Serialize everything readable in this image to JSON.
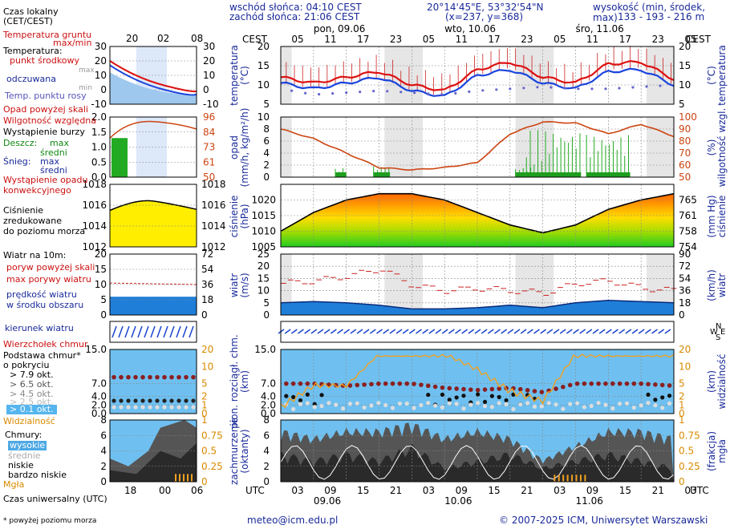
{
  "header": {
    "sunrise": "wschód słońca: 04:10 CEST",
    "sunset": "zachód słońca: 21:06 CEST",
    "coords": "20°14'45\"E, 53°32'54\"N",
    "grid": "(x=237, y=368)",
    "height_label": "wysokość (min, środek, max)",
    "height_values": "133 - 193 - 216 m"
  },
  "time_axis": {
    "top_tz": "CEST",
    "bottom_tz": "UTC",
    "top_hours": [
      "05",
      "11",
      "17",
      "23",
      "05",
      "11",
      "17",
      "23",
      "05",
      "11",
      "17",
      "23",
      "05"
    ],
    "bottom_hours": [
      "03",
      "09",
      "15",
      "21",
      "03",
      "09",
      "15",
      "21",
      "03",
      "09",
      "15",
      "21",
      "03"
    ],
    "top_days": [
      "pon, 09.06",
      "wto, 10.06",
      "śro, 11.06"
    ],
    "bottom_days": [
      "09.06",
      "10.06",
      "11.06"
    ]
  },
  "legend": {
    "local_time": "Czas lokalny",
    "local_time_tz": "(CET/CEST)",
    "local_ticks": [
      "20",
      "02",
      "08"
    ],
    "ground_temp": "Temperatura gruntu",
    "ground_temp_sub": "max/min",
    "temperature": "Temperatura:",
    "center_point": "punkt środkowy",
    "max": "max",
    "min": "min",
    "sheltered": "odczuwana",
    "dew_point": "Temp. punktu rosy",
    "precip_above": "Opad powyżej skali",
    "humidity": "Wilgotność względna",
    "storm": "Wystąpienie burzy",
    "rain": "Deszcz:",
    "rain_max": "max",
    "rain_mid": "średni",
    "snow": "Śnieg:",
    "snow_max": "max",
    "snow_mid": "średni",
    "convective": "Wystąpienie opadu",
    "convective2": "konwekcyjnego",
    "pressure1": "Ciśnienie",
    "pressure2": "zredukowane",
    "pressure3": "do poziomu morza",
    "wind_title": "Wiatr na 10m:",
    "gust_above": "poryw powyżej skali",
    "gust_max": "max porywy wiatru",
    "wind_mean1": "prędkość wiatru",
    "wind_mean2": "w środku obszaru",
    "wind_dir": "kierunek wiatru",
    "cloud_top": "Wierzchołek chmur",
    "cloud_base1": "Podstawa chmur*",
    "cloud_base2": "o pokryciu",
    "okt79": "> 7.9 okt.",
    "okt65": "> 6.5 okt.",
    "okt45": "> 4.5 okt.",
    "okt25": "> 2.5 okt.",
    "okt01": "> 0.1 okt.",
    "visibility": "Widzialność",
    "clouds": "Chmury:",
    "high": "wysokie",
    "mid": "średnie",
    "low": "niskie",
    "very_low": "bardzo niskie",
    "fog": "Mgła",
    "utc_time": "Czas uniwersalny (UTC)",
    "utc_ticks": [
      "18",
      "00",
      "06"
    ],
    "footnote": "* powyżej poziomu morza"
  },
  "panel_labels": {
    "temp_left": [
      "temperatura",
      "(°C)"
    ],
    "temp_right": [
      "temperatura",
      "(°C)"
    ],
    "precip_left": [
      "opad",
      "(mm/h, kg/m²/h)"
    ],
    "precip_right": [
      "wilgotność wzgl.",
      "(%)"
    ],
    "press_left": [
      "ciśnienie",
      "(hPa)"
    ],
    "press_right": [
      "ciśnienie",
      "(mm Hg)"
    ],
    "wind_left": [
      "wiatr",
      "(m/s)"
    ],
    "wind_right": [
      "wiatr",
      "(km/h)"
    ],
    "cloud_left": [
      "pion. rozciągł. chm.",
      "(km)"
    ],
    "cloud_right": [
      "widzialność",
      "(km)"
    ],
    "cover_left": [
      "zachmurzenie",
      "(oktanty)"
    ],
    "cover_right": [
      "mgła",
      "(frakcja)"
    ]
  },
  "footer": {
    "email": "meteo@icm.edu.pl",
    "copyright": "© 2007-2025 ICM, Uniwersytet Warszawski"
  },
  "colors": {
    "temp": "#dd1111",
    "feel": "#1a44dd",
    "dew": "#6666cc",
    "humidity": "#cc4411",
    "rain": "#22aa22",
    "pressure_line": "#000000",
    "wind_gust": "#cc2222",
    "sky": "#6fc0f0",
    "cloud_dark": "#333333",
    "visibility": "#f0a020"
  },
  "chart_data": [
    {
      "type": "line",
      "title": "temperatura",
      "ylabel": "temperatura (°C)",
      "ylim": [
        5,
        20
      ],
      "yticks": [
        5,
        10,
        15,
        20
      ],
      "x_hours_utc": [
        0,
        6,
        12,
        18,
        24,
        30,
        36,
        42,
        48,
        54,
        60,
        66,
        72
      ],
      "series": [
        {
          "name": "temperatura",
          "values": [
            12,
            10.5,
            12,
            13.5,
            10,
            8.5,
            14,
            16,
            12,
            10.5,
            15.5,
            16,
            11.5
          ]
        },
        {
          "name": "odczuwana",
          "values": [
            10.5,
            9,
            10.5,
            12,
            8.5,
            7,
            12.5,
            14,
            10.5,
            9,
            13.5,
            14,
            10
          ]
        },
        {
          "name": "punkt rosy",
          "values": [
            9,
            7.5,
            8,
            8.5,
            8,
            7.5,
            8.5,
            9,
            9.5,
            9,
            9,
            9.5,
            10
          ]
        }
      ]
    },
    {
      "type": "line",
      "title": "opad i wilgotność",
      "ylabel": "opad (mm/h, kg/m²/h)",
      "ylim": [
        0,
        10
      ],
      "y2lim": [
        50,
        100
      ],
      "x_hours_utc": [
        0,
        6,
        12,
        18,
        24,
        30,
        36,
        42,
        48,
        54,
        60,
        66,
        72
      ],
      "series": [
        {
          "name": "wilgotność względna",
          "values": [
            90,
            82,
            70,
            58,
            56,
            58,
            62,
            86,
            96,
            95,
            86,
            94,
            84
          ]
        },
        {
          "name": "opad max",
          "values": [
            0,
            0,
            0,
            1.5,
            0,
            0,
            0,
            6,
            5.5,
            0,
            5,
            0,
            0
          ]
        }
      ]
    },
    {
      "type": "area",
      "title": "ciśnienie",
      "ylabel": "ciśnienie (hPa)",
      "ylim": [
        1005,
        1025
      ],
      "yticks": [
        1005,
        1010,
        1015,
        1020
      ],
      "y2ticks": [
        754,
        758,
        761,
        765
      ],
      "x_hours_utc": [
        0,
        6,
        12,
        18,
        24,
        30,
        36,
        42,
        48,
        54,
        60,
        66,
        72
      ],
      "values": [
        1010,
        1016,
        1020,
        1022,
        1022,
        1020,
        1016,
        1012,
        1009.5,
        1012,
        1017,
        1020,
        1022
      ]
    },
    {
      "type": "area",
      "title": "wiatr",
      "ylabel": "wiatr (m/s)",
      "ylim": [
        0,
        25
      ],
      "yticks": [
        0,
        5,
        10,
        15,
        20,
        25
      ],
      "y2ticks": [
        0,
        18,
        36,
        54,
        72,
        90
      ],
      "x_hours_utc": [
        0,
        6,
        12,
        18,
        24,
        30,
        36,
        42,
        48,
        54,
        60,
        66,
        72
      ],
      "series": [
        {
          "name": "prędkość wiatru",
          "values": [
            5,
            5.5,
            5,
            4,
            2.5,
            2.5,
            3,
            4,
            3,
            5,
            6,
            5.5,
            5
          ]
        },
        {
          "name": "max porywy",
          "values": [
            13,
            14,
            16,
            19,
            12,
            10,
            11,
            10,
            9,
            13,
            14,
            11,
            10
          ]
        }
      ]
    },
    {
      "type": "scatter",
      "title": "chmury",
      "ylabel": "pion. rozciągł. chm. (km)",
      "ylim": [
        0,
        15
      ],
      "yticks": [
        0,
        2.0,
        4.0,
        7.0,
        15.0
      ],
      "y2ticks": [
        0,
        1,
        2,
        5,
        10,
        20
      ],
      "x_hours_utc": [
        0,
        6,
        12,
        18,
        24,
        30,
        36,
        42,
        48,
        54,
        60,
        66,
        72
      ],
      "series": [
        {
          "name": "wierzchołek chmur",
          "values": [
            7,
            7,
            6.5,
            7,
            7,
            6,
            5.5,
            6,
            5,
            7,
            7,
            7,
            6.5
          ]
        },
        {
          "name": "widzialność",
          "values": [
            3,
            10,
            10,
            20,
            20,
            20,
            15,
            8,
            5,
            20,
            20,
            20,
            20
          ]
        }
      ]
    },
    {
      "type": "area",
      "title": "zachmurzenie",
      "ylabel": "zachmurzenie (oktanty)",
      "ylim": [
        0,
        8
      ],
      "yticks": [
        0,
        2,
        4,
        6,
        8
      ],
      "y2ticks": [
        0,
        0.25,
        0.5,
        0.75,
        1
      ],
      "x_hours_utc": [
        0,
        6,
        12,
        18,
        24,
        30,
        36,
        42,
        48,
        54,
        60,
        66,
        72
      ],
      "series": [
        {
          "name": "wysokie",
          "values": [
            7,
            6,
            7,
            7,
            8,
            6,
            7,
            6,
            3,
            5,
            7,
            7,
            6
          ]
        },
        {
          "name": "niskie",
          "values": [
            4,
            3,
            4,
            3,
            5,
            2,
            3,
            4,
            2,
            3,
            4,
            3,
            2
          ]
        }
      ]
    }
  ]
}
